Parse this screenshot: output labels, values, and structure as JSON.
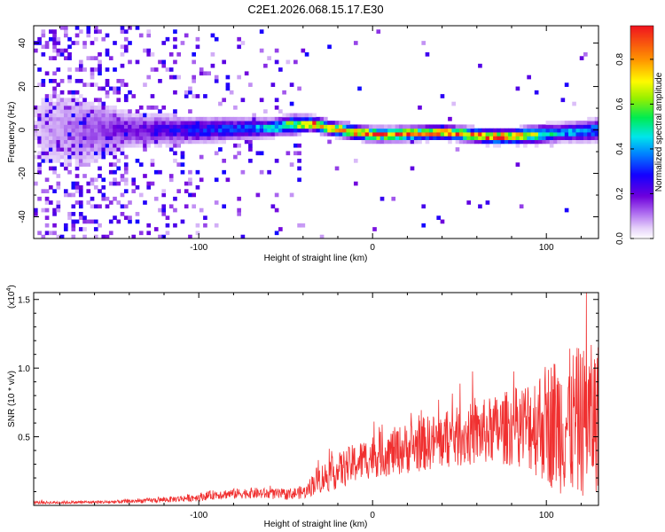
{
  "title": "C2E1.2026.068.15.17.E30",
  "chart_data": [
    {
      "type": "heatmap",
      "title": "C2E1.2026.068.15.17.E30",
      "xlabel": "Height of straight line (km)",
      "ylabel": "Frequency (Hz)",
      "xlim": [
        -195,
        130
      ],
      "ylim": [
        -50,
        48
      ],
      "x_ticks": [
        -100,
        0,
        100
      ],
      "x_tick_labels": [
        "-100",
        "0",
        "100"
      ],
      "y_ticks": [
        -40,
        -20,
        0,
        20,
        40
      ],
      "y_tick_labels": [
        "-40",
        "-20",
        "0",
        "20",
        "40"
      ],
      "colorbar": {
        "label": "Normalized spectral amplitude",
        "range": [
          0.0,
          0.95
        ],
        "ticks": [
          0.0,
          0.2,
          0.4,
          0.6,
          0.8
        ],
        "tick_labels": [
          "0.0",
          "0.2",
          "0.4",
          "0.6",
          "0.8"
        ],
        "colormap": "rainbow (white-violet-blue-cyan-green-yellow-orange-red)"
      },
      "ridge": {
        "x": [
          -195,
          -140,
          -100,
          -80,
          -60,
          -45,
          -35,
          -25,
          -10,
          0,
          10,
          25,
          40,
          55,
          65,
          80,
          95,
          110,
          130
        ],
        "y": [
          0,
          0,
          0,
          0.5,
          1,
          2.5,
          3,
          1,
          -1,
          -2,
          -2,
          -1.5,
          -1,
          -2,
          -3,
          -3,
          -2,
          -1,
          0
        ],
        "peak_amplitude": [
          0.05,
          0.2,
          0.3,
          0.35,
          0.45,
          0.7,
          0.9,
          0.85,
          0.9,
          0.95,
          0.9,
          0.85,
          0.9,
          0.85,
          0.95,
          0.9,
          0.6,
          0.45,
          0.4
        ],
        "half_width_hz": [
          30,
          8,
          6,
          5,
          4,
          4,
          3,
          3,
          3,
          3,
          3,
          3,
          3,
          3,
          3,
          3,
          4,
          4,
          5
        ]
      }
    },
    {
      "type": "line",
      "xlabel": "Height of straight line (km)",
      "ylabel": "SNR (10 * v/v)",
      "y_multiplier": "(x10",
      "y_multiplier_exp": "4",
      "y_multiplier_close": ")",
      "xlim": [
        -195,
        130
      ],
      "ylim": [
        0,
        1.55
      ],
      "x_ticks": [
        -100,
        0,
        100
      ],
      "x_tick_labels": [
        "-100",
        "0",
        "100"
      ],
      "y_ticks": [
        0.5,
        1.0,
        1.5
      ],
      "y_tick_labels": [
        "0.5",
        "1.0",
        "1.5"
      ],
      "color": "#f03030",
      "series": [
        {
          "name": "SNR",
          "envelope": {
            "x": [
              -195,
              -150,
              -120,
              -100,
              -90,
              -70,
              -50,
              -38,
              -33,
              -25,
              -15,
              0,
              15,
              30,
              50,
              70,
              85,
              95,
              105,
              115,
              125,
              130
            ],
            "mean": [
              0.02,
              0.025,
              0.04,
              0.06,
              0.08,
              0.09,
              0.08,
              0.1,
              0.18,
              0.22,
              0.28,
              0.36,
              0.4,
              0.45,
              0.5,
              0.55,
              0.58,
              0.6,
              0.6,
              0.6,
              0.62,
              0.65
            ],
            "spread": [
              0.01,
              0.012,
              0.02,
              0.03,
              0.035,
              0.04,
              0.04,
              0.05,
              0.1,
              0.12,
              0.14,
              0.16,
              0.18,
              0.2,
              0.22,
              0.25,
              0.3,
              0.4,
              0.5,
              0.55,
              0.55,
              0.55
            ]
          },
          "max_peak": {
            "x": 123,
            "y": 1.55
          }
        }
      ]
    }
  ]
}
